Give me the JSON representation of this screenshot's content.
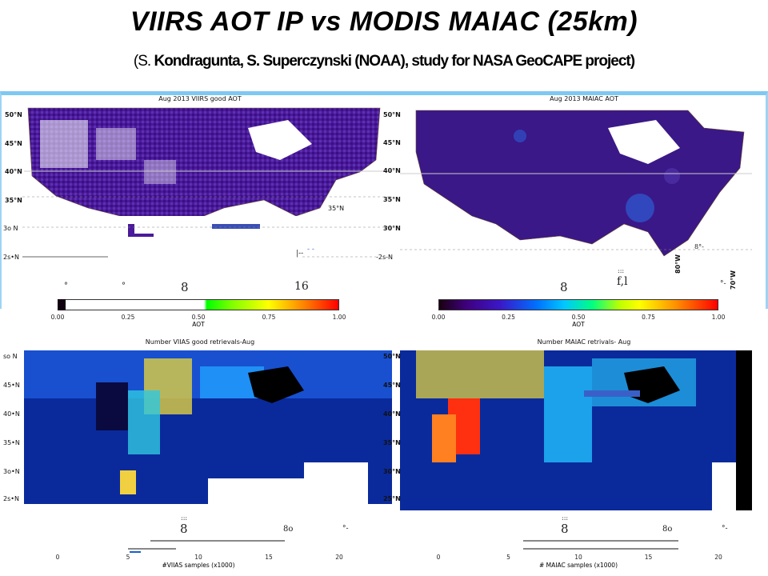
{
  "slide": {
    "title": "VIIRS AOT IP vs MODIS  MAIAC  (25km)",
    "subtitle_open": "(S. ",
    "subtitle_bold": "Kondragunta,  S. Superczynski  (NOAA), study for NASA GeoCAPE  project)"
  },
  "panels": {
    "top_left": {
      "title": "Aug 2013 VIIRS good AOT",
      "lat_left": [
        "50°N",
        "45°N",
        "40°N",
        "35°N",
        "3o N",
        "2s•N"
      ],
      "lat_right": [
        "35°N",
        "-2s-N"
      ],
      "stray": [
        "°",
        "°",
        "8",
        "16",
        "|--",
        "- -"
      ]
    },
    "top_right": {
      "title": "Aug 2013 MAIAC AOT",
      "lat_left": [
        "50°N",
        "45°N",
        "40°N",
        "35°N",
        "30°N"
      ],
      "lon": [
        "80°W",
        "70°W"
      ],
      "stray": [
        "8",
        "f,l",
        ":::",
        "8°-",
        "°-"
      ]
    },
    "bottom_left": {
      "title": "Number VIIAS good retrievals-Aug",
      "lat_left": [
        "so N",
        "45•N",
        "40•N",
        "35•N",
        "3o•N",
        "2s•N"
      ],
      "stray": [
        ":::",
        "8",
        "8o",
        "°-"
      ]
    },
    "bottom_right": {
      "title": "Number MAIAC retrivals- Aug",
      "lat_left": [
        "50°N",
        "45°N",
        "40°N",
        "35°N",
        "30°N",
        "25°N"
      ],
      "stray": [
        ":::",
        "8",
        "8o",
        "°-"
      ]
    }
  },
  "colorbars": {
    "aot_left": {
      "ticks": [
        "0.00",
        "0.25",
        "0.50",
        "0.75",
        "1.00"
      ],
      "label": "AOT"
    },
    "aot_right": {
      "ticks": [
        "0.00",
        "0.25",
        "0.50",
        "0.75",
        "1.00"
      ],
      "label": "AOT"
    },
    "count_left": {
      "ticks": [
        "0",
        "5",
        "10",
        "15",
        "20"
      ],
      "label": "#VIIAS samples (x1000)"
    },
    "count_right": {
      "ticks": [
        "0",
        "5",
        "10",
        "15",
        "20"
      ],
      "label": "# MAIAC samples (x1000)"
    }
  },
  "colors": {
    "frame_blue": "#7fc8f2",
    "jet_low": "#00007f",
    "jet_high": "#ff0000",
    "aot_dark": "#300060"
  }
}
